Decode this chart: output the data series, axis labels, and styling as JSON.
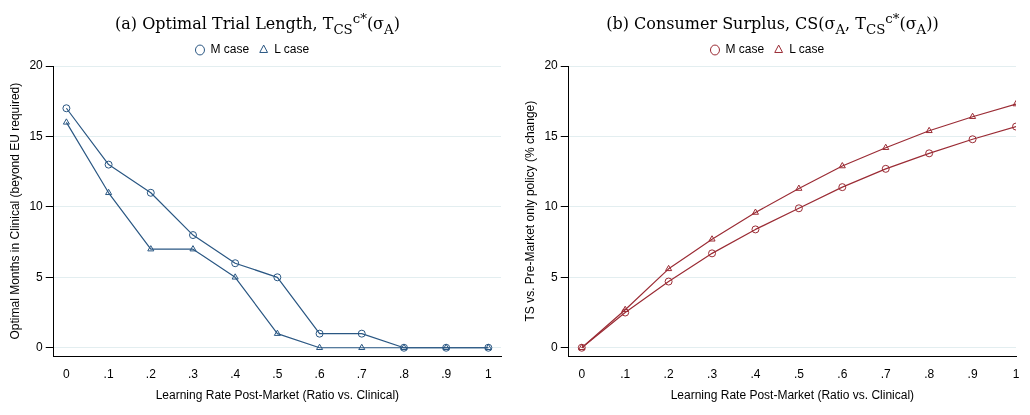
{
  "chart_data": [
    {
      "type": "line",
      "title": "(a) Optimal Trial Length, T$_{CS}$$^{c*}$(σ$_{A}$)",
      "xlabel": "Learning Rate Post-Market (Ratio vs. Clinical)",
      "ylabel": "Optimal Months in Clinical (beyond EU required)",
      "x": [
        0,
        0.1,
        0.2,
        0.3,
        0.4,
        0.5,
        0.6,
        0.7,
        0.8,
        0.9,
        1
      ],
      "series": [
        {
          "name": "M case",
          "color": "#2a5783",
          "marker": "circle",
          "values": [
            17,
            13,
            11,
            8,
            6,
            5,
            1,
            1,
            0,
            0,
            0
          ]
        },
        {
          "name": "L case",
          "color": "#2a5783",
          "marker": "triangle",
          "values": [
            16,
            11,
            7,
            7,
            5,
            1,
            0,
            0,
            0,
            0,
            0
          ]
        }
      ],
      "xlim": [
        -0.03,
        1.03
      ],
      "xticks": [
        {
          "value": 0,
          "label": "0"
        },
        {
          "value": 0.1,
          "label": ".1"
        },
        {
          "value": 0.2,
          "label": ".2"
        },
        {
          "value": 0.3,
          "label": ".3"
        },
        {
          "value": 0.4,
          "label": ".4"
        },
        {
          "value": 0.5,
          "label": ".5"
        },
        {
          "value": 0.6,
          "label": ".6"
        },
        {
          "value": 0.7,
          "label": ".7"
        },
        {
          "value": 0.8,
          "label": ".8"
        },
        {
          "value": 0.9,
          "label": ".9"
        },
        {
          "value": 1,
          "label": "1"
        }
      ],
      "ylim": [
        -0.6,
        20
      ],
      "yticks": [
        0,
        5,
        10,
        15,
        20
      ],
      "grid": "y",
      "legend": "top",
      "line_style": "solid"
    },
    {
      "type": "line",
      "title": "(b) Consumer Surplus, CS(σ$_{A}$, T$_{CS}$$^{c*}$(σ$_{A}$))",
      "xlabel": "Learning Rate Post-Market (Ratio vs. Clinical)",
      "ylabel": "TS vs. Pre-Market only policy (% change)",
      "x": [
        0,
        0.1,
        0.2,
        0.3,
        0.4,
        0.5,
        0.6,
        0.7,
        0.8,
        0.9,
        1
      ],
      "series": [
        {
          "name": "M case",
          "color": "#9b2c35",
          "marker": "circle",
          "values": [
            0,
            2.5,
            4.7,
            6.7,
            8.4,
            9.9,
            11.4,
            12.7,
            13.8,
            14.8,
            15.7
          ]
        },
        {
          "name": "L case",
          "color": "#9b2c35",
          "marker": "triangle",
          "values": [
            0,
            2.7,
            5.6,
            7.7,
            9.6,
            11.3,
            12.9,
            14.2,
            15.4,
            16.4,
            17.3
          ]
        }
      ],
      "xlim": [
        -0.03,
        1.0
      ],
      "xticks": [
        {
          "value": 0,
          "label": "0"
        },
        {
          "value": 0.1,
          "label": ".1"
        },
        {
          "value": 0.2,
          "label": ".2"
        },
        {
          "value": 0.3,
          "label": ".3"
        },
        {
          "value": 0.4,
          "label": ".4"
        },
        {
          "value": 0.5,
          "label": ".5"
        },
        {
          "value": 0.6,
          "label": ".6"
        },
        {
          "value": 0.7,
          "label": ".7"
        },
        {
          "value": 0.8,
          "label": ".8"
        },
        {
          "value": 0.9,
          "label": ".9"
        },
        {
          "value": 1,
          "label": "1"
        }
      ],
      "ylim": [
        -0.6,
        20
      ],
      "yticks": [
        0,
        5,
        10,
        15,
        20
      ],
      "grid": "y",
      "legend": "top",
      "line_style": "solid"
    }
  ]
}
